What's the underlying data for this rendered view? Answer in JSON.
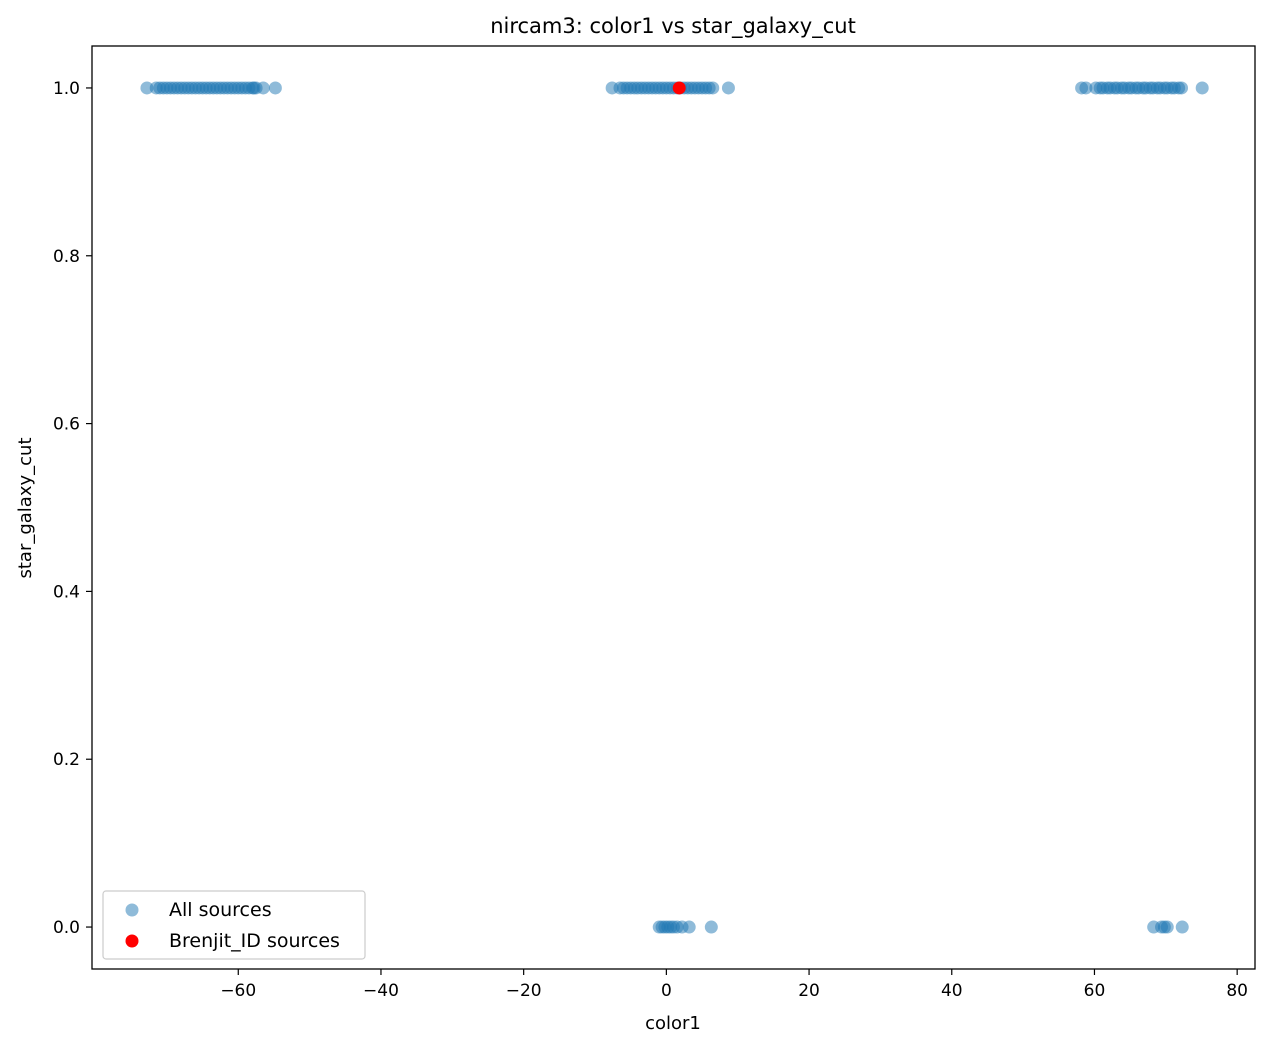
{
  "chart_data": {
    "type": "scatter",
    "title": "nircam3: color1 vs star_galaxy_cut",
    "xlabel": "color1",
    "ylabel": "star_galaxy_cut",
    "xlim": [
      -80.5,
      82.5
    ],
    "ylim": [
      -0.05,
      1.05
    ],
    "xticks": [
      -60,
      -40,
      -20,
      0,
      20,
      40,
      60,
      80
    ],
    "xtick_labels": [
      "−60",
      "−40",
      "−20",
      "0",
      "20",
      "40",
      "60",
      "80"
    ],
    "yticks": [
      0.0,
      0.2,
      0.4,
      0.6,
      0.8,
      1.0
    ],
    "ytick_labels": [
      "0.0",
      "0.2",
      "0.4",
      "0.6",
      "0.8",
      "1.0"
    ],
    "grid": false,
    "legend_position": "lower-left",
    "series": [
      {
        "name": "All sources",
        "color": "#1f77b4",
        "alpha": 0.5,
        "points": [
          [
            -72.8,
            1
          ],
          [
            -71.5,
            1
          ],
          [
            -71,
            1
          ],
          [
            -70.5,
            1
          ],
          [
            -70,
            1
          ],
          [
            -69.5,
            1
          ],
          [
            -69,
            1
          ],
          [
            -68.5,
            1
          ],
          [
            -68,
            1
          ],
          [
            -67.5,
            1
          ],
          [
            -67,
            1
          ],
          [
            -66.5,
            1
          ],
          [
            -66,
            1
          ],
          [
            -65.5,
            1
          ],
          [
            -65,
            1
          ],
          [
            -64.5,
            1
          ],
          [
            -64,
            1
          ],
          [
            -63.5,
            1
          ],
          [
            -63,
            1
          ],
          [
            -62.5,
            1
          ],
          [
            -62,
            1
          ],
          [
            -61.5,
            1
          ],
          [
            -61,
            1
          ],
          [
            -60.5,
            1
          ],
          [
            -60,
            1
          ],
          [
            -59.5,
            1
          ],
          [
            -59,
            1
          ],
          [
            -58.5,
            1
          ],
          [
            -58,
            1
          ],
          [
            -57.8,
            1
          ],
          [
            -57.5,
            1
          ],
          [
            -56.5,
            1
          ],
          [
            -54.8,
            1
          ],
          [
            -7.6,
            1
          ],
          [
            -6.5,
            1
          ],
          [
            -6,
            1
          ],
          [
            -5.5,
            1
          ],
          [
            -5,
            1
          ],
          [
            -4.5,
            1
          ],
          [
            -4,
            1
          ],
          [
            -3.5,
            1
          ],
          [
            -3,
            1
          ],
          [
            -2.5,
            1
          ],
          [
            -2,
            1
          ],
          [
            -1.5,
            1
          ],
          [
            -1,
            1
          ],
          [
            -0.5,
            1
          ],
          [
            0,
            1
          ],
          [
            0.5,
            1
          ],
          [
            1,
            1
          ],
          [
            1.5,
            1
          ],
          [
            2,
            1
          ],
          [
            2.5,
            1
          ],
          [
            3,
            1
          ],
          [
            3.5,
            1
          ],
          [
            4,
            1
          ],
          [
            4.5,
            1
          ],
          [
            5,
            1
          ],
          [
            5.5,
            1
          ],
          [
            6,
            1
          ],
          [
            6.5,
            1
          ],
          [
            8.7,
            1
          ],
          [
            58.2,
            1
          ],
          [
            58.8,
            1
          ],
          [
            60.2,
            1
          ],
          [
            60.8,
            1
          ],
          [
            61.2,
            1
          ],
          [
            61.8,
            1
          ],
          [
            62.2,
            1
          ],
          [
            62.8,
            1
          ],
          [
            63.2,
            1
          ],
          [
            63.8,
            1
          ],
          [
            64.2,
            1
          ],
          [
            64.8,
            1
          ],
          [
            65.2,
            1
          ],
          [
            65.8,
            1
          ],
          [
            66.2,
            1
          ],
          [
            66.8,
            1
          ],
          [
            67.2,
            1
          ],
          [
            67.8,
            1
          ],
          [
            68.2,
            1
          ],
          [
            68.8,
            1
          ],
          [
            69.2,
            1
          ],
          [
            69.8,
            1
          ],
          [
            70.2,
            1
          ],
          [
            70.8,
            1
          ],
          [
            71.2,
            1
          ],
          [
            71.8,
            1
          ],
          [
            72.2,
            1
          ],
          [
            75.1,
            1
          ],
          [
            -1,
            0
          ],
          [
            -0.6,
            0
          ],
          [
            -0.2,
            0
          ],
          [
            0.2,
            0
          ],
          [
            0.6,
            0
          ],
          [
            1,
            0
          ],
          [
            1.5,
            0
          ],
          [
            2.2,
            0
          ],
          [
            3.2,
            0
          ],
          [
            6.3,
            0
          ],
          [
            68.3,
            0
          ],
          [
            69.4,
            0
          ],
          [
            69.8,
            0
          ],
          [
            70.2,
            0
          ],
          [
            72.3,
            0
          ]
        ]
      },
      {
        "name": "Brenjit_ID sources",
        "color": "#ff0000",
        "alpha": 1.0,
        "points": [
          [
            1.8,
            1
          ]
        ]
      }
    ]
  }
}
